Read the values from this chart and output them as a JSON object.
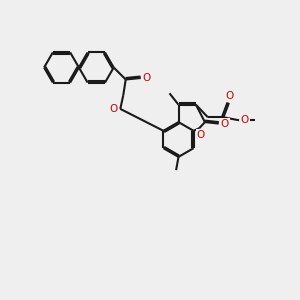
{
  "bg": "#efefef",
  "bc": "#1a1a1a",
  "red": "#cc0000",
  "bw": 1.5,
  "dbo": 0.05,
  "figsize": [
    3.0,
    3.0
  ],
  "dpi": 100,
  "xlim": [
    0,
    10
  ],
  "ylim": [
    0,
    10
  ]
}
